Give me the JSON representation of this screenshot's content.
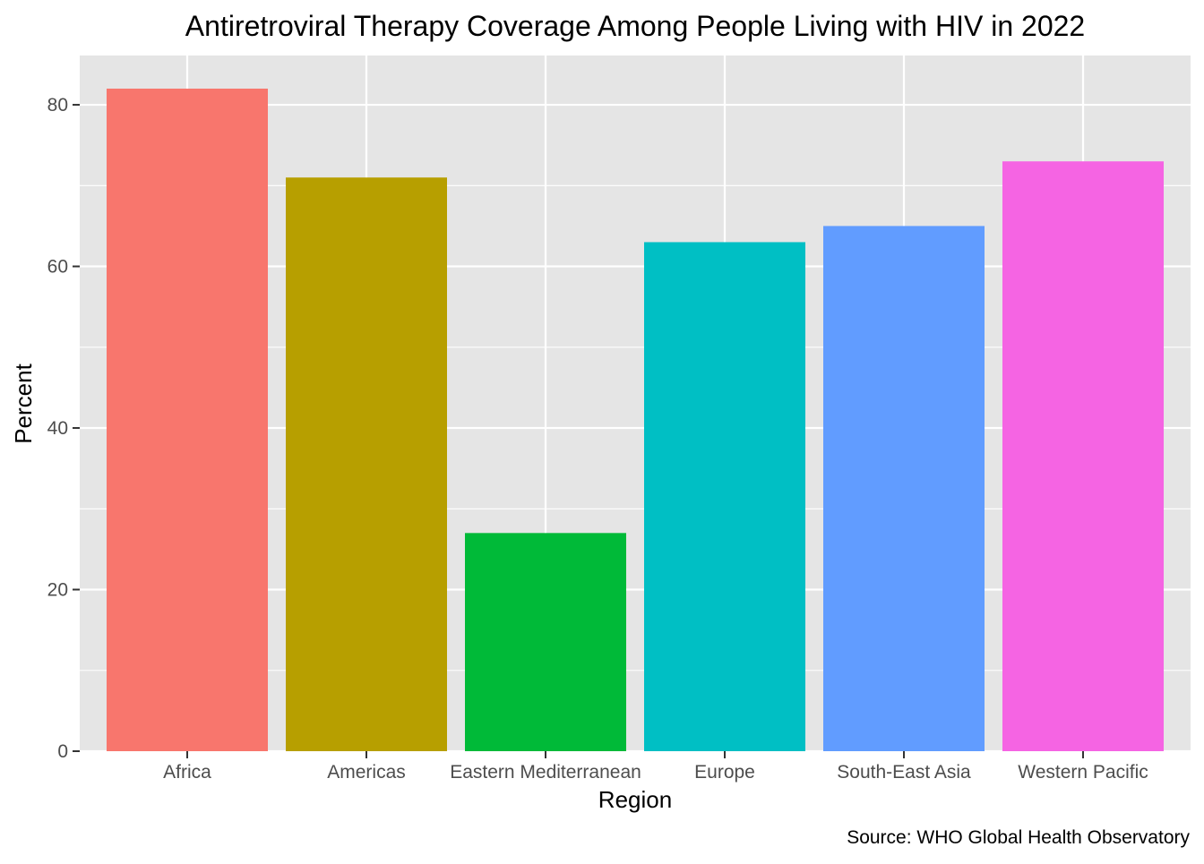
{
  "chart_data": {
    "type": "bar",
    "title": "Antiretroviral Therapy Coverage Among People Living with HIV in 2022",
    "xlabel": "Region",
    "ylabel": "Percent",
    "caption": "Source: WHO Global Health Observatory",
    "categories": [
      "Africa",
      "Americas",
      "Eastern Mediterranean",
      "Europe",
      "South-East Asia",
      "Western Pacific"
    ],
    "values": [
      82,
      71,
      27,
      63,
      65,
      73
    ],
    "colors": [
      "#F8766D",
      "#B79F00",
      "#00BA38",
      "#00BFC4",
      "#619CFF",
      "#F564E3"
    ],
    "ylim": [
      0,
      86.1
    ],
    "yticks": [
      0,
      20,
      40,
      60,
      80
    ],
    "grid": true,
    "legend": "none",
    "panel_background": "#E5E5E5",
    "grid_color": "#FFFFFF"
  }
}
